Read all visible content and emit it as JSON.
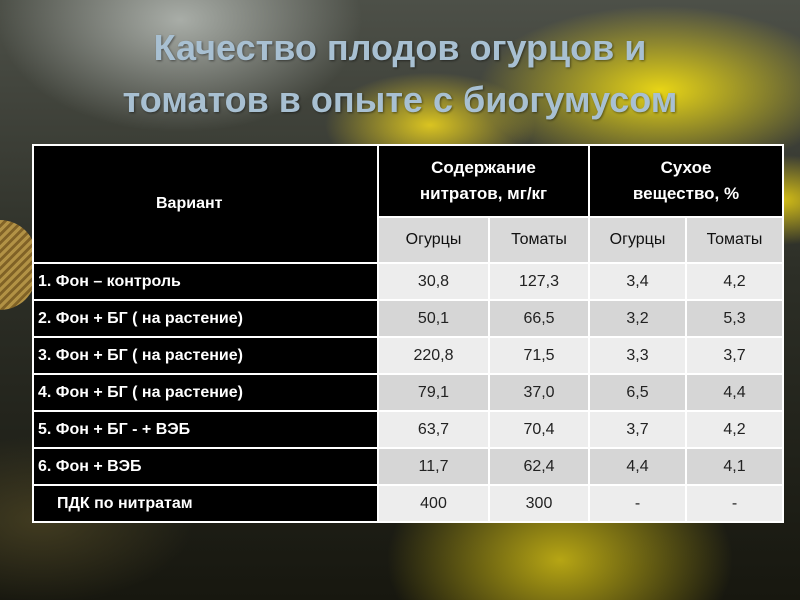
{
  "title_line1": "Качество плодов огурцов и",
  "title_line2": "томатов в опыте с биогумусом",
  "table": {
    "variant_header": "Вариант",
    "group1_line1": "Содержание",
    "group1_line2": "нитратов, мг/кг",
    "group2_line1": "Сухое",
    "group2_line2": "вещество, %",
    "sub_cucumbers": "Огурцы",
    "sub_tomatoes": "Томаты",
    "rows": [
      {
        "label": "1. Фон – контроль",
        "values": [
          "30,8",
          "127,3",
          "3,4",
          "4,2"
        ]
      },
      {
        "label": "2. Фон + БГ ( на растение)",
        "values": [
          "50,1",
          "66,5",
          "3,2",
          "5,3"
        ]
      },
      {
        "label": "3. Фон + БГ ( на растение)",
        "values": [
          "220,8",
          "71,5",
          "3,3",
          "3,7"
        ]
      },
      {
        "label": "4. Фон + БГ ( на растение)",
        "values": [
          "79,1",
          "37,0",
          "6,5",
          "4,4"
        ]
      },
      {
        "label": "5. Фон + БГ - + ВЭБ",
        "values": [
          "63,7",
          "70,4",
          "3,7",
          "4,2"
        ]
      },
      {
        "label": "6. Фон + ВЭБ",
        "values": [
          "11,7",
          "62,4",
          "4,4",
          "4,1"
        ]
      },
      {
        "label": "ПДК по нитратам",
        "values": [
          "400",
          "300",
          "-",
          "-"
        ]
      }
    ]
  }
}
